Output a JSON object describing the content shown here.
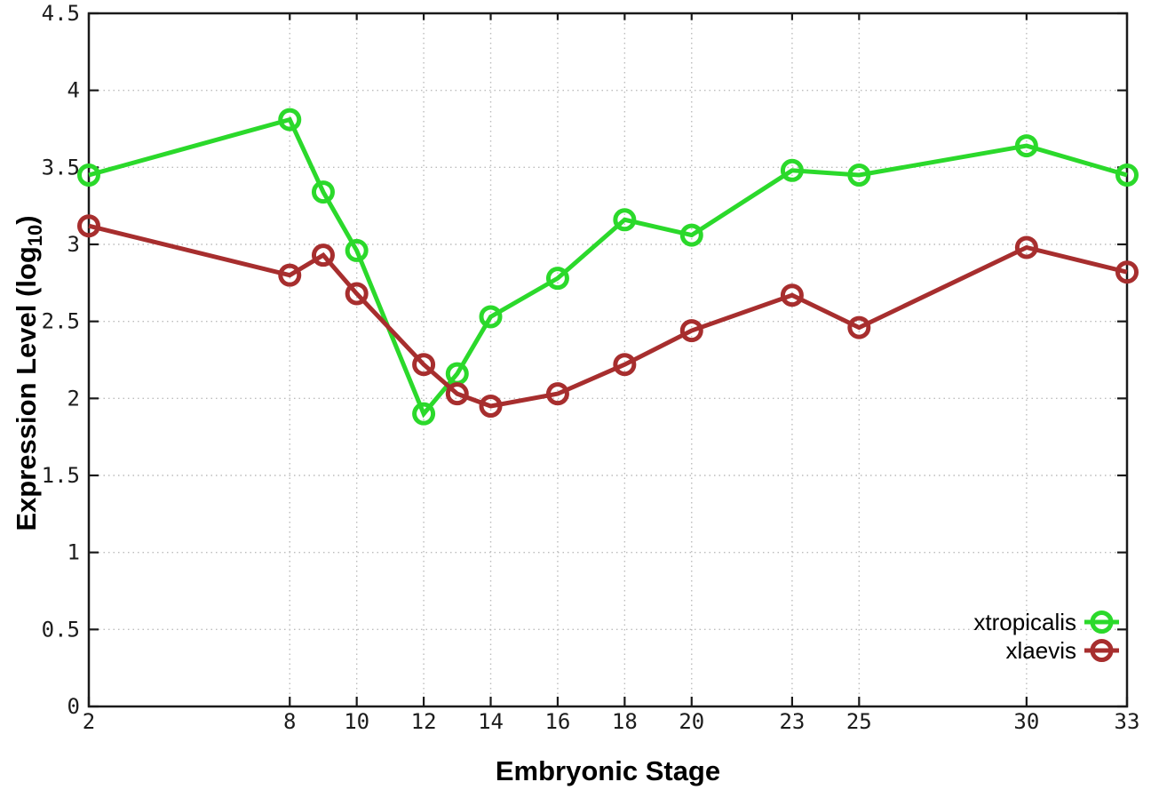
{
  "chart_data": {
    "type": "line",
    "title": "",
    "xlabel": "Embryonic Stage",
    "ylabel": {
      "pre": "Expression Level (log",
      "sub": "10",
      "post": ")"
    },
    "x": [
      2,
      8,
      9,
      10,
      12,
      13,
      14,
      16,
      18,
      20,
      23,
      25,
      30,
      33
    ],
    "xlim": [
      2,
      33
    ],
    "x_tick_values": [
      2,
      8,
      10,
      12,
      14,
      16,
      18,
      20,
      23,
      25,
      30,
      33
    ],
    "x_tick_labels": [
      "2",
      "8",
      "10",
      "12",
      "14",
      "16",
      "18",
      "20",
      "23",
      "25",
      "30",
      "33"
    ],
    "ylim": [
      0,
      4.5
    ],
    "y_tick_values": [
      0,
      0.5,
      1,
      1.5,
      2,
      2.5,
      3,
      3.5,
      4,
      4.5
    ],
    "y_tick_labels": [
      "0",
      "0.5",
      "1",
      "1.5",
      "2",
      "2.5",
      "3",
      "3.5",
      "4",
      "4.5"
    ],
    "grid": "dotted",
    "legend_position": "bottom-right",
    "series": [
      {
        "name": "xtropicalis",
        "color": "#2bd92b",
        "marker": "open-circle",
        "values": [
          3.45,
          3.81,
          3.34,
          2.96,
          1.9,
          2.16,
          2.53,
          2.78,
          3.16,
          3.06,
          3.48,
          3.45,
          3.64,
          3.45
        ]
      },
      {
        "name": "xlaevis",
        "color": "#a72e2e",
        "marker": "open-circle",
        "values": [
          3.12,
          2.8,
          2.93,
          2.68,
          2.22,
          2.03,
          1.95,
          2.03,
          2.22,
          2.44,
          2.67,
          2.46,
          2.98,
          2.82
        ]
      }
    ],
    "colors": {
      "axis": "#1a1a1a",
      "grid": "#bcbcbc",
      "background": "#ffffff"
    }
  }
}
